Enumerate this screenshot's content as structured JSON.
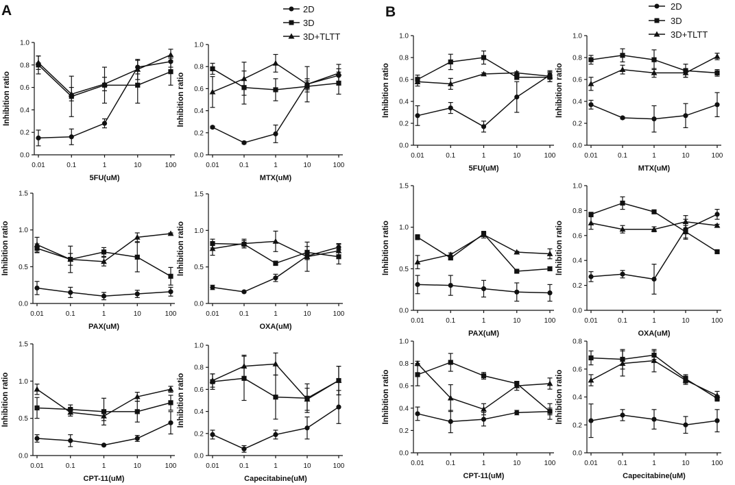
{
  "figure": {
    "panel_labels": [
      "A",
      "B"
    ],
    "legend_entries": [
      "2D",
      "3D",
      "3D+TLTT"
    ]
  },
  "chart_data": [
    {
      "id": "A1",
      "type": "line",
      "title": "",
      "xlabel": "5FU(uM)",
      "ylabel": "Inhibition ratio",
      "categories": [
        "0.01",
        "0.1",
        "1",
        "10",
        "100"
      ],
      "ylim": [
        0,
        1.0
      ],
      "yticks": [
        "0.0",
        "0.2",
        "0.4",
        "0.6",
        "0.8",
        "1.0"
      ],
      "series": [
        {
          "name": "2D",
          "marker": "circle",
          "values": [
            0.15,
            0.16,
            0.28,
            0.78,
            0.83
          ],
          "errors": [
            0.07,
            0.07,
            0.04,
            0.06,
            0.05
          ]
        },
        {
          "name": "3D",
          "marker": "square",
          "values": [
            0.8,
            0.52,
            0.62,
            0.62,
            0.74
          ],
          "errors": [
            0.08,
            0.18,
            0.16,
            0.16,
            0.12
          ]
        },
        {
          "name": "3D+TLTT",
          "marker": "triangle",
          "values": [
            0.82,
            0.54,
            0.63,
            0.76,
            0.89
          ],
          "errors": [
            0.06,
            0.06,
            0.06,
            0.09,
            0.05
          ]
        }
      ]
    },
    {
      "id": "A2",
      "type": "line",
      "title": "",
      "xlabel": "MTX(uM)",
      "ylabel": "Inhibition ratio",
      "categories": [
        "0.01",
        "0.1",
        "1",
        "10",
        "100"
      ],
      "ylim": [
        0,
        1.0
      ],
      "yticks": [
        "0.0",
        "0.2",
        "0.4",
        "0.6",
        "0.8",
        "1.0"
      ],
      "series": [
        {
          "name": "2D",
          "marker": "circle",
          "values": [
            0.25,
            0.11,
            0.19,
            0.64,
            0.72
          ],
          "errors": [
            0.01,
            0.01,
            0.08,
            0.05,
            0.06
          ]
        },
        {
          "name": "3D",
          "marker": "square",
          "values": [
            0.78,
            0.61,
            0.59,
            0.62,
            0.65
          ],
          "errors": [
            0.05,
            0.15,
            0.1,
            0.05,
            0.1
          ]
        },
        {
          "name": "3D+TLTT",
          "marker": "triangle",
          "values": [
            0.57,
            0.69,
            0.83,
            0.64,
            0.74
          ],
          "errors": [
            0.14,
            0.15,
            0.08,
            0.16,
            0.08
          ]
        }
      ]
    },
    {
      "id": "A3",
      "type": "line",
      "title": "",
      "xlabel": "PAX(uM)",
      "ylabel": "Inhibition ratio",
      "categories": [
        "0.01",
        "0.1",
        "1",
        "10",
        "100"
      ],
      "ylim": [
        0,
        1.5
      ],
      "yticks": [
        "0.0",
        "0.5",
        "1.0",
        "1.5"
      ],
      "series": [
        {
          "name": "2D",
          "marker": "circle",
          "values": [
            0.21,
            0.15,
            0.1,
            0.13,
            0.16
          ],
          "errors": [
            0.09,
            0.07,
            0.05,
            0.05,
            0.06
          ]
        },
        {
          "name": "3D",
          "marker": "square",
          "values": [
            0.75,
            0.6,
            0.7,
            0.63,
            0.37
          ],
          "errors": [
            0.06,
            0.18,
            0.06,
            0.2,
            0.12
          ]
        },
        {
          "name": "3D+TLTT",
          "marker": "triangle",
          "values": [
            0.8,
            0.6,
            0.57,
            0.9,
            0.95
          ],
          "errors": [
            0.1,
            0.08,
            0.06,
            0.06,
            0.01
          ]
        }
      ]
    },
    {
      "id": "A4",
      "type": "line",
      "title": "",
      "xlabel": "OXA(uM)",
      "ylabel": "Inhibition ratio",
      "categories": [
        "0.01",
        "0.1",
        "1",
        "10",
        "100"
      ],
      "ylim": [
        0,
        1.5
      ],
      "yticks": [
        "0.0",
        "0.5",
        "1.0",
        "1.5"
      ],
      "series": [
        {
          "name": "2D",
          "marker": "circle",
          "values": [
            0.22,
            0.16,
            0.35,
            0.65,
            0.77
          ],
          "errors": [
            0.03,
            0.01,
            0.05,
            0.05,
            0.04
          ]
        },
        {
          "name": "3D",
          "marker": "square",
          "values": [
            0.82,
            0.81,
            0.55,
            0.7,
            0.64
          ],
          "errors": [
            0.06,
            0.05,
            0.03,
            0.08,
            0.1
          ]
        },
        {
          "name": "3D+TLTT",
          "marker": "triangle",
          "values": [
            0.75,
            0.82,
            0.85,
            0.64,
            0.72
          ],
          "errors": [
            0.09,
            0.06,
            0.14,
            0.2,
            0.1
          ]
        }
      ]
    },
    {
      "id": "A5",
      "type": "line",
      "title": "",
      "xlabel": "CPT-11(uM)",
      "ylabel": "Inhibition ratio",
      "categories": [
        "0.01",
        "0.1",
        "1",
        "10",
        "100"
      ],
      "ylim": [
        0,
        1.5
      ],
      "yticks": [
        "0.0",
        "0.5",
        "1.0",
        "1.5"
      ],
      "series": [
        {
          "name": "2D",
          "marker": "circle",
          "values": [
            0.23,
            0.2,
            0.14,
            0.23,
            0.44
          ],
          "errors": [
            0.05,
            0.08,
            0.01,
            0.04,
            0.15
          ]
        },
        {
          "name": "3D",
          "marker": "square",
          "values": [
            0.64,
            0.62,
            0.59,
            0.59,
            0.71
          ],
          "errors": [
            0.14,
            0.06,
            0.18,
            0.14,
            0.1
          ]
        },
        {
          "name": "3D+TLTT",
          "marker": "triangle",
          "values": [
            0.89,
            0.58,
            0.53,
            0.79,
            0.89
          ],
          "errors": [
            0.07,
            0.05,
            0.06,
            0.06,
            0.04
          ]
        }
      ]
    },
    {
      "id": "A6",
      "type": "line",
      "title": "",
      "xlabel": "Capecitabine(uM)",
      "ylabel": "Inhibition ratio",
      "categories": [
        "0.01",
        "0.1",
        "1",
        "10",
        "100"
      ],
      "ylim": [
        0,
        1.0
      ],
      "yticks": [
        "0.0",
        "0.2",
        "0.4",
        "0.6",
        "0.8",
        "1.0"
      ],
      "series": [
        {
          "name": "2D",
          "marker": "circle",
          "values": [
            0.19,
            0.06,
            0.19,
            0.25,
            0.44
          ],
          "errors": [
            0.04,
            0.03,
            0.04,
            0.1,
            0.15
          ]
        },
        {
          "name": "3D",
          "marker": "square",
          "values": [
            0.67,
            0.7,
            0.53,
            0.52,
            0.68
          ],
          "errors": [
            0.07,
            0.2,
            0.2,
            0.13,
            0.13
          ]
        },
        {
          "name": "3D+TLTT",
          "marker": "triangle",
          "values": [
            0.68,
            0.81,
            0.83,
            0.51,
            0.68
          ],
          "errors": [
            0.06,
            0.1,
            0.1,
            0.1,
            0.13
          ]
        }
      ]
    },
    {
      "id": "B1",
      "type": "line",
      "title": "",
      "xlabel": "5FU(uM)",
      "ylabel": "Inhibition ratio",
      "categories": [
        "0.01",
        "0.1",
        "1",
        "10",
        "100"
      ],
      "ylim": [
        0,
        1.0
      ],
      "yticks": [
        "0.0",
        "0.2",
        "0.4",
        "0.6",
        "0.8",
        "1.0"
      ],
      "series": [
        {
          "name": "2D",
          "marker": "circle",
          "values": [
            0.27,
            0.34,
            0.17,
            0.44,
            0.64
          ],
          "errors": [
            0.09,
            0.05,
            0.05,
            0.14,
            0.03
          ]
        },
        {
          "name": "3D",
          "marker": "square",
          "values": [
            0.6,
            0.76,
            0.8,
            0.62,
            0.62
          ],
          "errors": [
            0.04,
            0.07,
            0.06,
            0.02,
            0.04
          ]
        },
        {
          "name": "3D+TLTT",
          "marker": "triangle",
          "values": [
            0.58,
            0.56,
            0.65,
            0.66,
            0.63
          ],
          "errors": [
            0.04,
            0.05,
            0.01,
            0.01,
            0.05
          ]
        }
      ]
    },
    {
      "id": "B2",
      "type": "line",
      "title": "",
      "xlabel": "MTX(uM)",
      "ylabel": "Inhibition ratio",
      "categories": [
        "0.01",
        "0.1",
        "1",
        "10",
        "100"
      ],
      "ylim": [
        0,
        1.0
      ],
      "yticks": [
        "0.0",
        "0.2",
        "0.4",
        "0.6",
        "0.8",
        "1.0"
      ],
      "series": [
        {
          "name": "2D",
          "marker": "circle",
          "values": [
            0.37,
            0.25,
            0.24,
            0.27,
            0.37
          ],
          "errors": [
            0.04,
            0.01,
            0.12,
            0.11,
            0.11
          ]
        },
        {
          "name": "3D",
          "marker": "square",
          "values": [
            0.78,
            0.82,
            0.78,
            0.68,
            0.66
          ],
          "errors": [
            0.04,
            0.06,
            0.09,
            0.06,
            0.03
          ]
        },
        {
          "name": "3D+TLTT",
          "marker": "triangle",
          "values": [
            0.56,
            0.69,
            0.66,
            0.66,
            0.81
          ],
          "errors": [
            0.06,
            0.04,
            0.04,
            0.04,
            0.03
          ]
        }
      ]
    },
    {
      "id": "B3",
      "type": "line",
      "title": "",
      "xlabel": "PAX(uM)",
      "ylabel": "Inhibition ratio",
      "categories": [
        "0.01",
        "0.1",
        "1",
        "10",
        "100"
      ],
      "ylim": [
        0,
        1.5
      ],
      "yticks": [
        "0.0",
        "0.5",
        "1.0",
        "1.5"
      ],
      "series": [
        {
          "name": "2D",
          "marker": "circle",
          "values": [
            0.31,
            0.3,
            0.26,
            0.22,
            0.21
          ],
          "errors": [
            0.11,
            0.12,
            0.1,
            0.11,
            0.1
          ]
        },
        {
          "name": "3D",
          "marker": "square",
          "values": [
            0.88,
            0.63,
            0.92,
            0.47,
            0.5
          ],
          "errors": [
            0.03,
            0.02,
            0.03,
            0.01,
            0.01
          ]
        },
        {
          "name": "3D+TLTT",
          "marker": "triangle",
          "values": [
            0.58,
            0.67,
            0.91,
            0.7,
            0.68
          ],
          "errors": [
            0.08,
            0.02,
            0.04,
            0.01,
            0.06
          ]
        }
      ]
    },
    {
      "id": "B4",
      "type": "line",
      "title": "",
      "xlabel": "OXA(uM)",
      "ylabel": "Inhibition ratio",
      "categories": [
        "0.01",
        "0.1",
        "1",
        "10",
        "100"
      ],
      "ylim": [
        0,
        1.0
      ],
      "yticks": [
        "0.0",
        "0.2",
        "0.4",
        "0.6",
        "0.8",
        "1.0"
      ],
      "series": [
        {
          "name": "2D",
          "marker": "circle",
          "values": [
            0.27,
            0.29,
            0.25,
            0.65,
            0.77
          ],
          "errors": [
            0.04,
            0.03,
            0.12,
            0.08,
            0.04
          ]
        },
        {
          "name": "3D",
          "marker": "square",
          "values": [
            0.77,
            0.86,
            0.79,
            0.63,
            0.47
          ],
          "errors": [
            0.01,
            0.05,
            0.01,
            0.05,
            0.01
          ]
        },
        {
          "name": "3D+TLTT",
          "marker": "triangle",
          "values": [
            0.7,
            0.65,
            0.65,
            0.71,
            0.68
          ],
          "errors": [
            0.05,
            0.03,
            0.02,
            0.05,
            0.01
          ]
        }
      ]
    },
    {
      "id": "B5",
      "type": "line",
      "title": "",
      "xlabel": "CPT-11(uM)",
      "ylabel": "Inhibition ratio",
      "categories": [
        "0.01",
        "0.1",
        "1",
        "10",
        "100"
      ],
      "ylim": [
        0,
        1.0
      ],
      "yticks": [
        "0.0",
        "0.2",
        "0.4",
        "0.6",
        "0.8",
        "1.0"
      ],
      "series": [
        {
          "name": "2D",
          "marker": "circle",
          "values": [
            0.35,
            0.28,
            0.3,
            0.36,
            0.37
          ],
          "errors": [
            0.06,
            0.1,
            0.06,
            0.02,
            0.03
          ]
        },
        {
          "name": "3D",
          "marker": "square",
          "values": [
            0.7,
            0.81,
            0.69,
            0.62,
            0.37
          ],
          "errors": [
            0.1,
            0.08,
            0.03,
            0.02,
            0.07
          ]
        },
        {
          "name": "3D+TLTT",
          "marker": "triangle",
          "values": [
            0.8,
            0.49,
            0.39,
            0.6,
            0.62
          ],
          "errors": [
            0.02,
            0.12,
            0.05,
            0.04,
            0.05
          ]
        }
      ]
    },
    {
      "id": "B6",
      "type": "line",
      "title": "",
      "xlabel": "Capecitabine(uM)",
      "ylabel": "Inhibition ratio",
      "categories": [
        "0.01",
        "0.1",
        "1",
        "10",
        "100"
      ],
      "ylim": [
        0,
        0.8
      ],
      "yticks": [
        "0.0",
        "0.2",
        "0.4",
        "0.6",
        "0.8"
      ],
      "series": [
        {
          "name": "2D",
          "marker": "circle",
          "values": [
            0.23,
            0.27,
            0.24,
            0.2,
            0.23
          ],
          "errors": [
            0.12,
            0.04,
            0.07,
            0.06,
            0.08
          ]
        },
        {
          "name": "3D",
          "marker": "square",
          "values": [
            0.68,
            0.67,
            0.7,
            0.53,
            0.39
          ],
          "errors": [
            0.05,
            0.07,
            0.03,
            0.03,
            0.02
          ]
        },
        {
          "name": "3D+TLTT",
          "marker": "triangle",
          "values": [
            0.52,
            0.64,
            0.66,
            0.52,
            0.41
          ],
          "errors": [
            0.04,
            0.09,
            0.08,
            0.03,
            0.03
          ]
        }
      ]
    }
  ]
}
